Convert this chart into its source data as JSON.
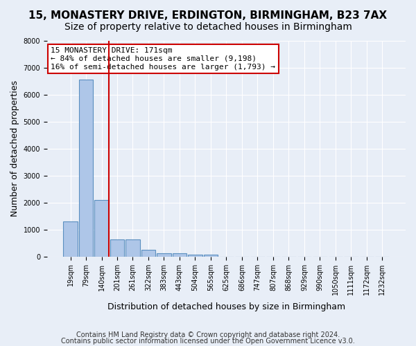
{
  "title1": "15, MONASTERY DRIVE, ERDINGTON, BIRMINGHAM, B23 7AX",
  "title2": "Size of property relative to detached houses in Birmingham",
  "xlabel": "Distribution of detached houses by size in Birmingham",
  "ylabel": "Number of detached properties",
  "footnote1": "Contains HM Land Registry data © Crown copyright and database right 2024.",
  "footnote2": "Contains public sector information licensed under the Open Government Licence v3.0.",
  "bins": [
    "19sqm",
    "79sqm",
    "140sqm",
    "201sqm",
    "261sqm",
    "322sqm",
    "383sqm",
    "443sqm",
    "504sqm",
    "565sqm",
    "625sqm",
    "686sqm",
    "747sqm",
    "807sqm",
    "868sqm",
    "929sqm",
    "990sqm",
    "1050sqm",
    "1111sqm",
    "1172sqm",
    "1232sqm"
  ],
  "bar_values": [
    1300,
    6550,
    2090,
    640,
    640,
    250,
    130,
    110,
    60,
    60,
    0,
    0,
    0,
    0,
    0,
    0,
    0,
    0,
    0,
    0,
    0
  ],
  "bar_color": "#aec6e8",
  "bar_edge_color": "#5a8fc0",
  "vline_x_index": 2,
  "vline_color": "#cc0000",
  "ylim": [
    0,
    8000
  ],
  "yticks": [
    0,
    1000,
    2000,
    3000,
    4000,
    5000,
    6000,
    7000,
    8000
  ],
  "annotation_title": "15 MONASTERY DRIVE: 171sqm",
  "annotation_line1": "← 84% of detached houses are smaller (9,198)",
  "annotation_line2": "16% of semi-detached houses are larger (1,793) →",
  "annot_box_color": "#ffffff",
  "annot_box_edge": "#cc0000",
  "bg_color": "#e8eef7",
  "plot_bg_color": "#e8eef7",
  "grid_color": "#ffffff",
  "title1_fontsize": 11,
  "title2_fontsize": 10,
  "xlabel_fontsize": 9,
  "ylabel_fontsize": 9,
  "tick_fontsize": 7,
  "annot_fontsize": 8,
  "footnote_fontsize": 7
}
